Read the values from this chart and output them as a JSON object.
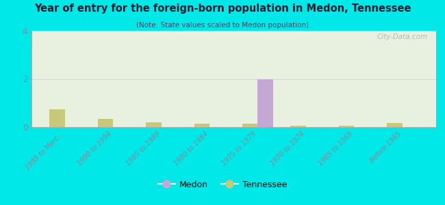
{
  "title": "Year of entry for the foreign-born population in Medon, Tennessee",
  "subtitle": "(Note: State values scaled to Medon population)",
  "categories": [
    "1995 to Marc...",
    "1990 to 1994",
    "1985 to 1989",
    "1980 to 1984",
    "1975 to 1979",
    "1970 to 1974",
    "1965 to 1969",
    "Before 1965"
  ],
  "medon_values": [
    0,
    0,
    0,
    0,
    2,
    0,
    0,
    0
  ],
  "tennessee_values": [
    0.75,
    0.35,
    0.2,
    0.15,
    0.15,
    0.07,
    0.05,
    0.18
  ],
  "medon_color": "#c4a8d4",
  "tennessee_color": "#c8c87a",
  "background_color": "#00e8e8",
  "plot_bg": "#e8f0e0",
  "ylim": [
    0,
    4
  ],
  "yticks": [
    0,
    2,
    4
  ],
  "bar_width": 0.32,
  "watermark": "City-Data.com",
  "legend_medon": "Medon",
  "legend_tennessee": "Tennessee",
  "title_color": "#1a1a2e",
  "subtitle_color": "#444466",
  "tick_color": "#888899"
}
